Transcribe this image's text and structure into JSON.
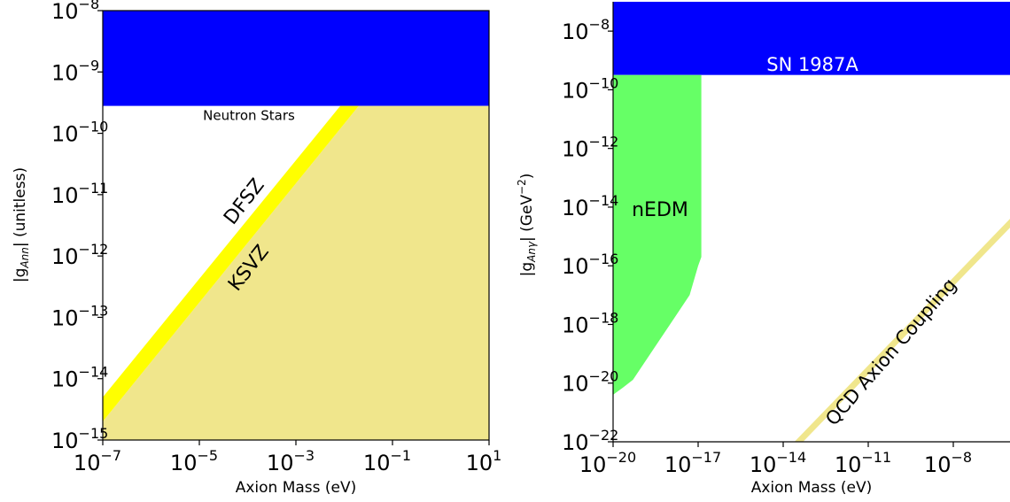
{
  "chart_data": [
    {
      "type": "area",
      "xlabel": "Axion Mass (eV)",
      "ylabel": "|g_Ann| (unitless)",
      "ylabel_main": "|g",
      "ylabel_sub": "Ann",
      "ylabel_tail": "| (unitless)",
      "xscale": "log",
      "yscale": "log",
      "xlim": [
        1e-07,
        10
      ],
      "ylim": [
        1e-15,
        1e-08
      ],
      "x_tick_exponents": [
        "-7",
        "-5",
        "-3",
        "-1",
        "1"
      ],
      "y_tick_exponents": [
        "-15",
        "-14",
        "-13",
        "-12",
        "-11",
        "-10",
        "-9",
        "-8"
      ],
      "tick_base": "10",
      "tick_minus": "−",
      "regions": [
        {
          "name": "Neutron Stars",
          "color": "#0000ff",
          "y_lower": 2.8e-10,
          "y_upper": 1e-08
        },
        {
          "name": "KSVZ",
          "color": "#f0e68c",
          "boundary": [
            [
              1e-07,
              2e-15
            ],
            [
              0.02,
              2.8e-10
            ]
          ]
        },
        {
          "name": "DFSZ",
          "color": "#ffff00",
          "band_lower": [
            [
              1e-07,
              2e-15
            ],
            [
              0.02,
              2.8e-10
            ]
          ],
          "band_upper": [
            [
              1e-07,
              5e-15
            ],
            [
              0.0083,
              2.8e-10
            ]
          ]
        }
      ],
      "annotations": {
        "neutron_stars": "Neutron Stars",
        "dfsz": "DFSZ",
        "ksvz": "KSVZ"
      }
    },
    {
      "type": "area",
      "xlabel": "Axion Mass (eV)",
      "ylabel": "|g_Anγ| (GeV^-2)",
      "ylabel_main": "|g",
      "ylabel_sub": "Anγ",
      "ylabel_tail": "| (GeV",
      "ylabel_unit_sup": "−2",
      "ylabel_close": ")",
      "xscale": "log",
      "yscale": "log",
      "xlim": [
        1e-20,
        1e-06
      ],
      "ylim": [
        1e-22,
        1e-07
      ],
      "x_tick_exponents": [
        "-20",
        "-17",
        "-14",
        "-11",
        "-8"
      ],
      "y_tick_exponents": [
        "-22",
        "-20",
        "-18",
        "-16",
        "-14",
        "-12",
        "-10",
        "-8"
      ],
      "tick_base": "10",
      "tick_minus": "−",
      "regions": [
        {
          "name": "SN 1987A",
          "color": "#0000ff",
          "y_lower": 3.2e-10,
          "y_upper": 1e-07
        },
        {
          "name": "nEDM",
          "color": "#66ff66",
          "outline": [
            [
              1e-20,
              4e-21
            ],
            [
              2.2e-20,
              7e-21
            ],
            [
              5e-20,
              1.3e-20
            ],
            [
              5e-18,
              1e-17
            ],
            [
              1e-17,
              1e-16
            ],
            [
              1.3e-17,
              2e-16
            ],
            [
              1.3e-17,
              3.2e-10
            ],
            [
              1e-20,
              3.2e-10
            ]
          ]
        },
        {
          "name": "QCD Axion Coupling",
          "color": "#f0e68c",
          "band_lower": [
            [
              5e-14,
              1e-22
            ],
            [
              1e-06,
              2e-15
            ]
          ],
          "band_upper": [
            [
              2.5e-14,
              1e-22
            ],
            [
              1e-06,
              4e-15
            ]
          ]
        }
      ],
      "annotations": {
        "sn1987a": "SN 1987A",
        "nedm": "nEDM",
        "qcd": "QCD Axion Coupling"
      }
    }
  ]
}
